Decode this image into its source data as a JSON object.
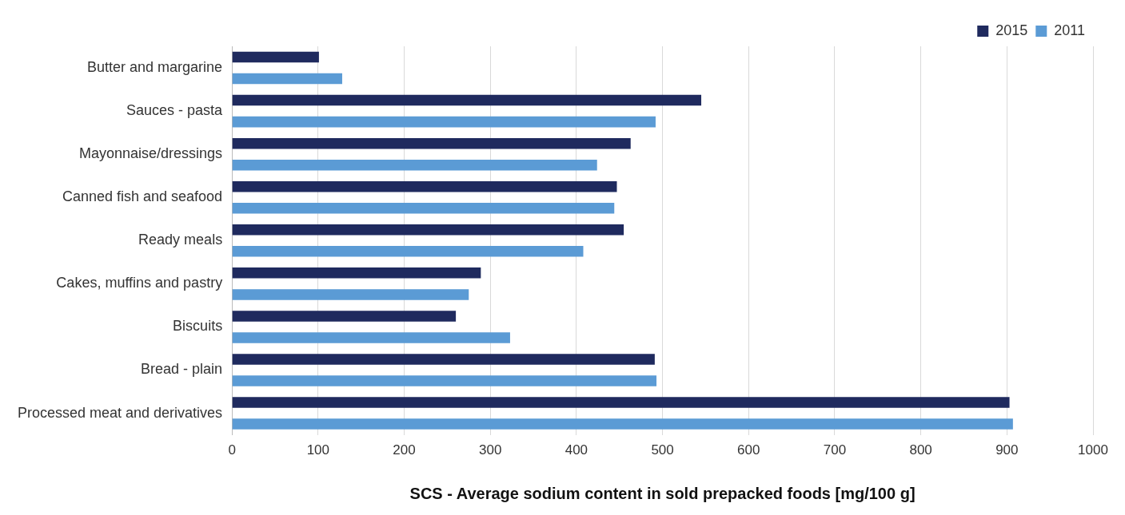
{
  "chart_data": {
    "type": "bar",
    "orientation": "horizontal",
    "xlabel": "SCS - Average sodium content in sold prepacked foods [mg/100 g]",
    "categories": [
      "Butter and margarine",
      "Sauces - pasta",
      "Mayonnaise/dressings",
      "Canned fish and seafood",
      "Ready meals",
      "Cakes, muffins and pastry",
      "Biscuits",
      "Bread - plain",
      "Processed meat and derivatives"
    ],
    "series": [
      {
        "name": "2015",
        "color": "#1f2a5e",
        "values": [
          101,
          545,
          463,
          447,
          455,
          289,
          260,
          491,
          903
        ]
      },
      {
        "name": "2011",
        "color": "#5b9bd5",
        "values": [
          128,
          492,
          424,
          444,
          408,
          275,
          323,
          493,
          907
        ]
      }
    ],
    "xlim": [
      0,
      1000
    ],
    "xticks": [
      0,
      100,
      200,
      300,
      400,
      500,
      600,
      700,
      800,
      900,
      1000
    ],
    "grid": "x",
    "legend": "top right"
  }
}
